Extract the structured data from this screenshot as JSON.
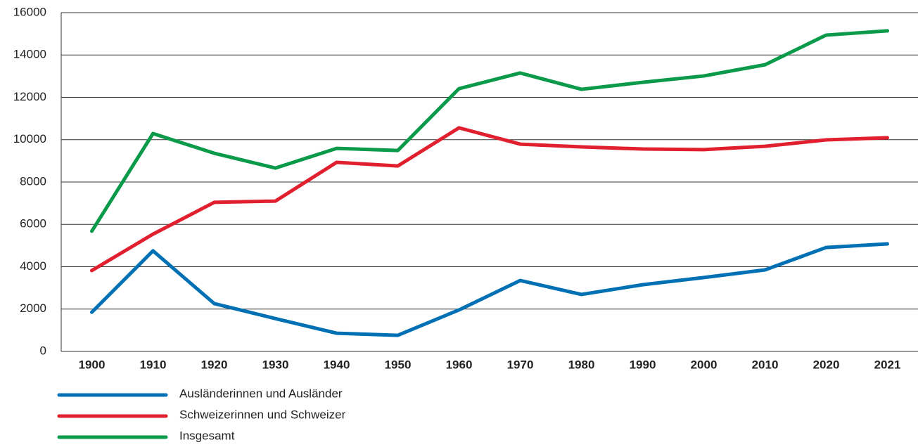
{
  "chart_data": {
    "type": "line",
    "categories": [
      "1900",
      "1910",
      "1920",
      "1930",
      "1940",
      "1950",
      "1960",
      "1970",
      "1980",
      "1990",
      "2000",
      "2010",
      "2020",
      "2021"
    ],
    "series": [
      {
        "name": "Ausländerinnen und Ausländer",
        "color": "#0070b4",
        "values": [
          1850,
          4750,
          2260,
          1550,
          860,
          760,
          1960,
          3350,
          2690,
          3150,
          3490,
          3850,
          4910,
          5080
        ]
      },
      {
        "name": "Schweizerinnen und Schweizer",
        "color": "#e0202f",
        "values": [
          3820,
          5540,
          7040,
          7100,
          8930,
          8760,
          10560,
          9790,
          9660,
          9560,
          9530,
          9690,
          9990,
          10090
        ]
      },
      {
        "name": "Insgesamt",
        "color": "#0a9a4a",
        "values": [
          5680,
          10290,
          9360,
          8660,
          9590,
          9490,
          12410,
          13150,
          12380,
          12710,
          13010,
          13540,
          14940,
          15140
        ]
      }
    ],
    "ylim": [
      0,
      16000
    ],
    "yticks": [
      0,
      2000,
      4000,
      6000,
      8000,
      10000,
      12000,
      14000,
      16000
    ],
    "grid": true,
    "legend": "bottom-left"
  }
}
